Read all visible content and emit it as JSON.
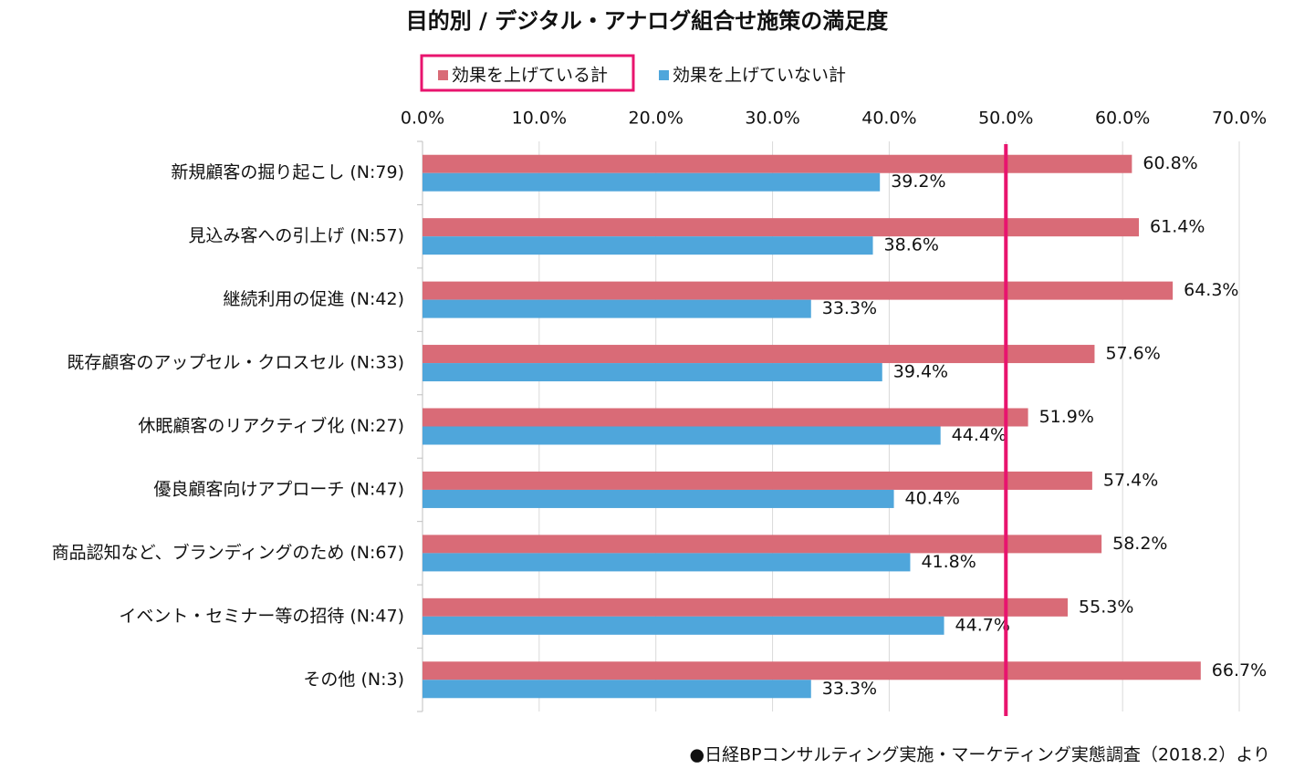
{
  "chart_data": {
    "type": "grouped-hbar",
    "title": "目的別 / デジタル・アナログ組合せ施策の満足度",
    "categories": [
      "新規顧客の掘り起こし (N:79)",
      "見込み客への引上げ (N:57)",
      "継続利用の促進 (N:42)",
      "既存顧客のアップセル・クロスセル (N:33)",
      "休眠顧客のリアクティブ化 (N:27)",
      "優良顧客向けアプローチ (N:47)",
      "商品認知など、ブランディングのため (N:67)",
      "イベント・セミナー等の招待 (N:47)",
      "その他 (N:3)"
    ],
    "series": [
      {
        "name": "効果を上げている計",
        "color": "#d96b77",
        "values": [
          60.8,
          61.4,
          64.3,
          57.6,
          51.9,
          57.4,
          58.2,
          55.3,
          66.7
        ],
        "value_labels": [
          "60.8%",
          "61.4%",
          "64.3%",
          "57.6%",
          "51.9%",
          "57.4%",
          "58.2%",
          "55.3%",
          "66.7%"
        ]
      },
      {
        "name": "効果を上げていない計",
        "color": "#4fa6db",
        "values": [
          39.2,
          38.6,
          33.3,
          39.4,
          44.4,
          40.4,
          41.8,
          44.7,
          33.3
        ],
        "value_labels": [
          "39.2%",
          "38.6%",
          "33.3%",
          "39.4%",
          "44.4%",
          "40.4%",
          "41.8%",
          "44.7%",
          "33.3%"
        ]
      }
    ],
    "xlim": [
      0,
      70
    ],
    "xticks": [
      {
        "value": 0,
        "label": "0.0%"
      },
      {
        "value": 10,
        "label": "10.0%"
      },
      {
        "value": 20,
        "label": "20.0%"
      },
      {
        "value": 30,
        "label": "30.0%"
      },
      {
        "value": 40,
        "label": "40.0%"
      },
      {
        "value": 50,
        "label": "50.0%"
      },
      {
        "value": 60,
        "label": "60.0%"
      },
      {
        "value": 70,
        "label": "70.0%"
      }
    ],
    "grid": true,
    "reference_line": {
      "value": 50,
      "color": "#e8146e"
    },
    "note": "●日経BPコンサルティング実施・マーケティング実態調査（2018.2）より"
  }
}
